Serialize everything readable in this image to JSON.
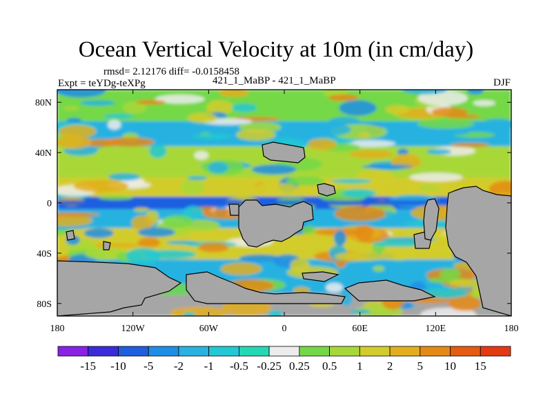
{
  "title": "Ocean Vertical Velocity at 10m (in cm/day)",
  "stats": "rmsd= 2.12176 diff= -0.0158458",
  "expt": "Expt = teYDg-teXPg",
  "runs": "421_1_MaBP - 421_1_MaBP",
  "season": "DJF",
  "colors": {
    "land": "#a6a6a6",
    "palette": [
      "#8a22e6",
      "#3a2cdc",
      "#1e5ee0",
      "#1e8ee6",
      "#28b2e0",
      "#22c8d4",
      "#24d8b4",
      "#ececec",
      "#74d846",
      "#a8d838",
      "#d2cc2a",
      "#e2ae1c",
      "#e48a14",
      "#e65a12",
      "#e43a14"
    ]
  },
  "chart_data": {
    "type": "heatmap",
    "title": "Ocean Vertical Velocity at 10m (in cm/day)",
    "units": "cm/day",
    "x_ticks": [
      "180",
      "120W",
      "60W",
      "0",
      "60E",
      "120E",
      "180"
    ],
    "x_tick_values": [
      -180,
      -120,
      -60,
      0,
      60,
      120,
      180
    ],
    "y_ticks": [
      "80N",
      "40N",
      "0",
      "40S",
      "80S"
    ],
    "y_tick_values": [
      80,
      40,
      0,
      -40,
      -80
    ],
    "xlim": [
      -180,
      180
    ],
    "ylim": [
      -90,
      90
    ],
    "colorbar_labels": [
      "-15",
      "-10",
      "-5",
      "-2",
      "-1",
      "-0.5",
      "-0.25",
      "0.25",
      "0.5",
      "1",
      "2",
      "5",
      "10",
      "15"
    ],
    "zonal_bands": [
      {
        "lat": [
          -90,
          -72
        ],
        "dominant": "land"
      },
      {
        "lat": [
          -72,
          -45
        ],
        "dominant": "-1"
      },
      {
        "lat": [
          -45,
          -20
        ],
        "dominant": "1"
      },
      {
        "lat": [
          -20,
          -5
        ],
        "dominant": "-1"
      },
      {
        "lat": [
          -5,
          5
        ],
        "dominant": "-5"
      },
      {
        "lat": [
          5,
          20
        ],
        "dominant": "1"
      },
      {
        "lat": [
          20,
          45
        ],
        "dominant": "0.5"
      },
      {
        "lat": [
          45,
          65
        ],
        "dominant": "-1"
      },
      {
        "lat": [
          65,
          90
        ],
        "dominant": "0.25"
      }
    ]
  }
}
